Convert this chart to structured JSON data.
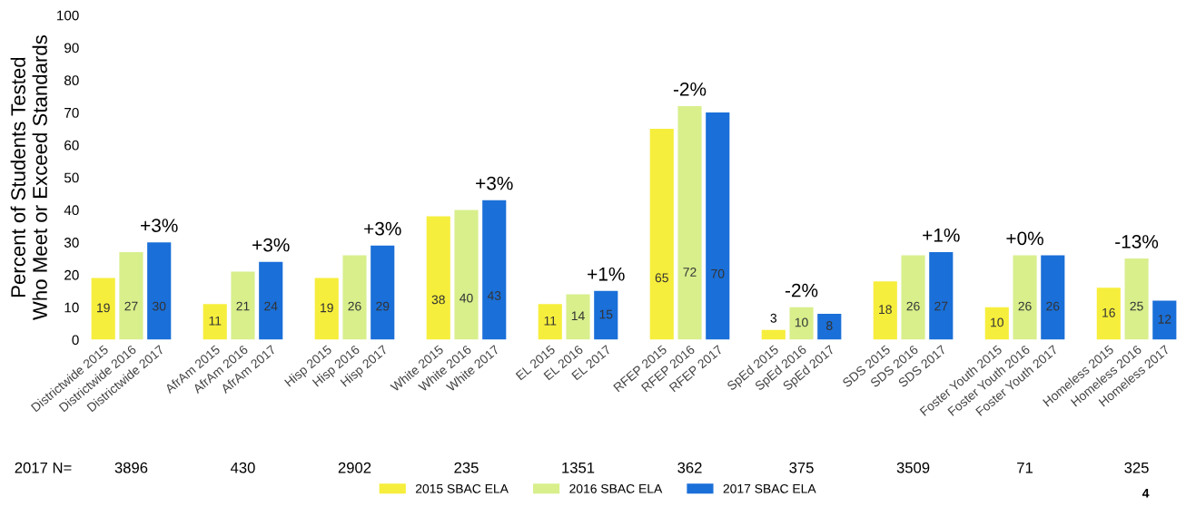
{
  "chart_data": {
    "type": "bar",
    "ylabel": "Percent of Students Tested\nWho Meet or Exceed Standards",
    "categories": [
      "Districtwide 2015",
      "Districtwide 2016",
      "Districtwide 2017",
      null,
      "AfrAm 2015",
      "AfrAm 2016",
      "AfrAm 2017",
      null,
      "Hisp 2015",
      "Hisp 2016",
      "Hisp 2017",
      null,
      "White 2015",
      "White 2016",
      "White 2017",
      null,
      "EL 2015",
      "EL 2016",
      "EL 2017",
      null,
      "RFEP 2015",
      "RFEP 2016",
      "RFEP 2017",
      null,
      "SpEd 2015",
      "SpEd 2016",
      "SpEd 2017",
      null,
      "SDS 2015",
      "SDS 2016",
      "SDS 2017",
      null,
      "Foster Youth 2015",
      "Foster Youth 2016",
      "Foster Youth 2017",
      null,
      "Homeless 2015",
      "Homeless 2016",
      "Homeless 2017"
    ],
    "series": [
      {
        "name": "2015 SBAC ELA",
        "color": "#f6ee3c",
        "values": [
          19,
          null,
          null,
          null,
          11,
          null,
          null,
          null,
          19,
          null,
          null,
          null,
          38,
          null,
          null,
          null,
          11,
          null,
          null,
          null,
          65,
          null,
          null,
          null,
          3,
          null,
          null,
          null,
          18,
          null,
          null,
          null,
          10,
          null,
          null,
          null,
          16,
          null,
          null
        ]
      },
      {
        "name": "2016 SBAC ELA",
        "color": "#d8ef8c",
        "values": [
          null,
          27,
          null,
          null,
          null,
          21,
          null,
          null,
          null,
          26,
          null,
          null,
          null,
          40,
          null,
          null,
          null,
          14,
          null,
          null,
          null,
          72,
          null,
          null,
          null,
          10,
          null,
          null,
          null,
          26,
          null,
          null,
          null,
          26,
          null,
          null,
          null,
          25,
          null
        ]
      },
      {
        "name": "2017 SBAC ELA",
        "color": "#1a6fd8",
        "values": [
          null,
          null,
          30,
          null,
          null,
          null,
          24,
          null,
          null,
          null,
          29,
          null,
          null,
          null,
          43,
          null,
          null,
          null,
          15,
          null,
          null,
          null,
          70,
          null,
          null,
          null,
          8,
          null,
          null,
          null,
          27,
          null,
          null,
          null,
          26,
          null,
          null,
          null,
          12
        ]
      }
    ],
    "ylim": [
      0,
      100
    ],
    "yticks": [
      0,
      10,
      20,
      30,
      40,
      50,
      60,
      70,
      80,
      90,
      100
    ],
    "data_labels": true,
    "grid": false,
    "legend": "bottom",
    "annotations": [
      "+3%",
      "+3%",
      "+3%",
      "+3%",
      "+1%",
      "-2%",
      "-2%",
      "+1%",
      "+0%",
      "-13%",
      "2017 N=",
      "3896",
      "430",
      "2902",
      "235",
      "1351",
      "362",
      "375",
      "3509",
      "71",
      "325",
      "4"
    ]
  }
}
